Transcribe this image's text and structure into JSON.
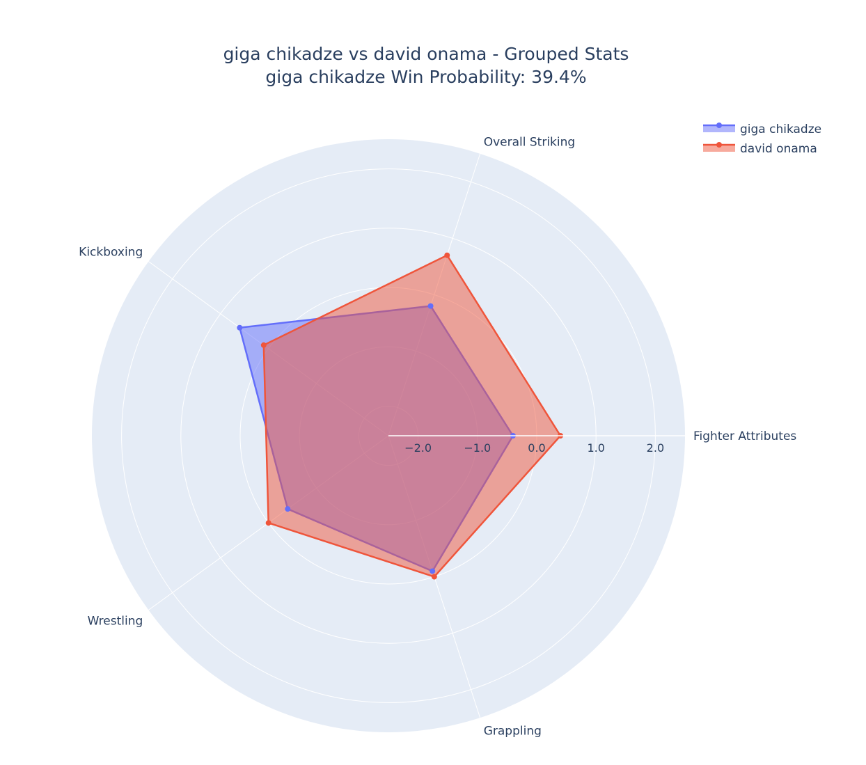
{
  "colors": {
    "background": "#ffffff",
    "polar_bg": "#e5ecf6",
    "grid": "#ffffff",
    "text": "#2a3f5f"
  },
  "chart_data": {
    "type": "radar",
    "title_line1": "giga chikadze vs david onama - Grouped Stats",
    "title_line2": "giga chikadze Win Probability: 39.4%",
    "categories": [
      "Fighter Attributes",
      "Overall Striking",
      "Kickboxing",
      "Wrestling",
      "Grappling"
    ],
    "radial_range": [
      -2.5,
      2.5
    ],
    "radial_ticks": [
      -2.0,
      -1.0,
      0.0,
      1.0,
      2.0
    ],
    "radial_tick_labels": [
      "−2.0",
      "−1.0",
      "0.0",
      "1.0",
      "2.0"
    ],
    "legend_position": "top-right",
    "series": [
      {
        "name": "giga chikadze",
        "color": "#636efa",
        "values": [
          -0.4,
          -0.2,
          0.6,
          -0.4,
          -0.1
        ]
      },
      {
        "name": "david onama",
        "color": "#ef553b",
        "values": [
          0.4,
          0.7,
          0.1,
          0.0,
          0.0
        ]
      }
    ]
  }
}
